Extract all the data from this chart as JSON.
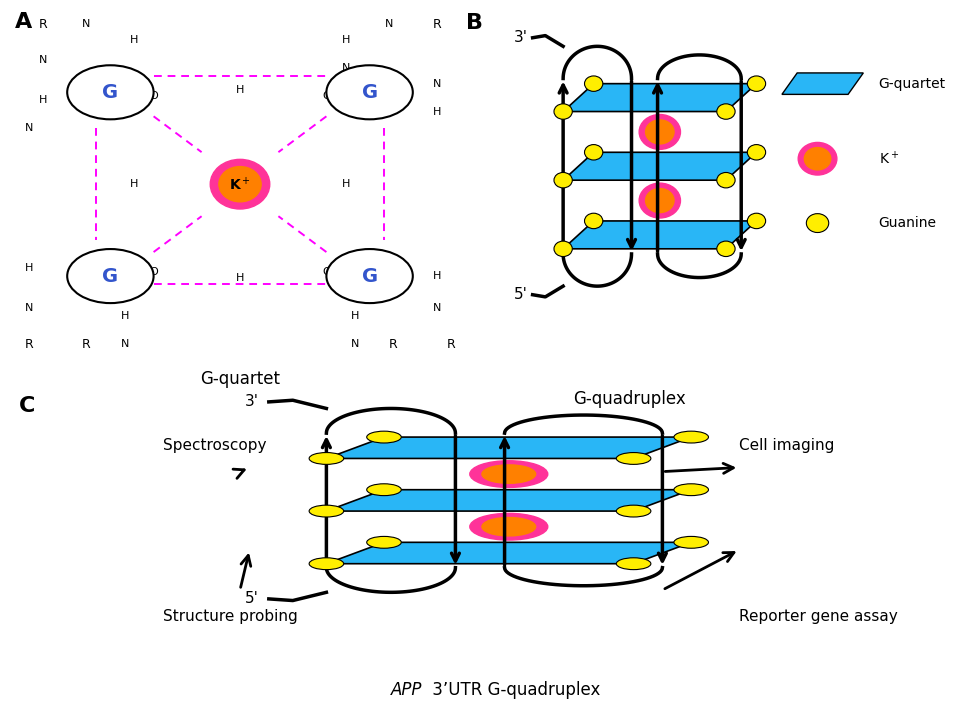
{
  "panel_labels": [
    "A",
    "B",
    "C"
  ],
  "panel_A_title": "G-quartet",
  "panel_B_title": "G-quadruplex",
  "panel_C_title": "APP 3’UTR G-quadruplex",
  "cyan_color": "#29B6F6",
  "yellow_color": "#FFEE00",
  "K_color_inner": "#FF8000",
  "K_color_outer": "#FF3399",
  "magenta_dashes": "#FF00FF",
  "background": "#FFFFFF",
  "blue_G": "#3355CC",
  "panel_C_labels": [
    "Spectroscopy",
    "Cell imaging",
    "Structure probing",
    "Reporter gene assay"
  ]
}
